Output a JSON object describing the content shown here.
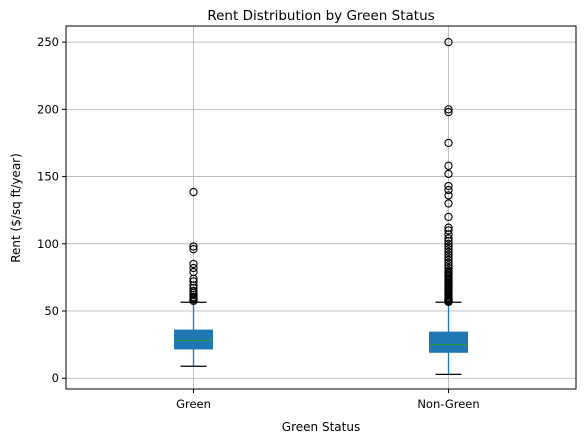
{
  "chart_data": {
    "type": "box",
    "title": "Rent Distribution by Green Status",
    "xlabel": "Green Status",
    "ylabel": "Rent ($/sq ft/year)",
    "categories": [
      "Green",
      "Non-Green"
    ],
    "ylim": [
      -8,
      262
    ],
    "yticks": [
      0,
      50,
      100,
      150,
      200,
      250
    ],
    "grid": true,
    "colors": {
      "box": "#1f77b4",
      "median": "#2ca02c",
      "whisker": "#1f77b4",
      "cap": "#000000",
      "flier": "#000000",
      "grid": "#b0b0b0"
    },
    "series": [
      {
        "category": "Green",
        "whisker_low": 8.9,
        "q1": 21.8,
        "median": 28,
        "q3": 35.8,
        "whisker_high": 56.5,
        "outliers": [
          57.5,
          58.5,
          59.5,
          60.5,
          62,
          63.5,
          65,
          67,
          69,
          72,
          74,
          79,
          82,
          85,
          96,
          98,
          138.5
        ]
      },
      {
        "category": "Non-Green",
        "whisker_low": 2.9,
        "q1": 19.3,
        "median": 25,
        "q3": 34.3,
        "whisker_high": 56.5,
        "outliers": [
          56.8,
          57.5,
          58,
          58.5,
          59,
          59.5,
          60,
          61,
          62,
          63,
          64,
          65,
          66,
          67,
          68,
          69,
          70,
          71,
          72,
          73,
          74,
          75,
          76,
          77,
          78,
          79,
          80,
          82,
          84,
          86,
          88,
          90,
          92,
          94,
          96,
          98,
          100,
          102,
          104,
          107,
          110,
          112,
          120,
          130,
          136,
          140,
          143,
          152,
          158,
          175,
          198,
          200,
          250
        ]
      }
    ]
  }
}
